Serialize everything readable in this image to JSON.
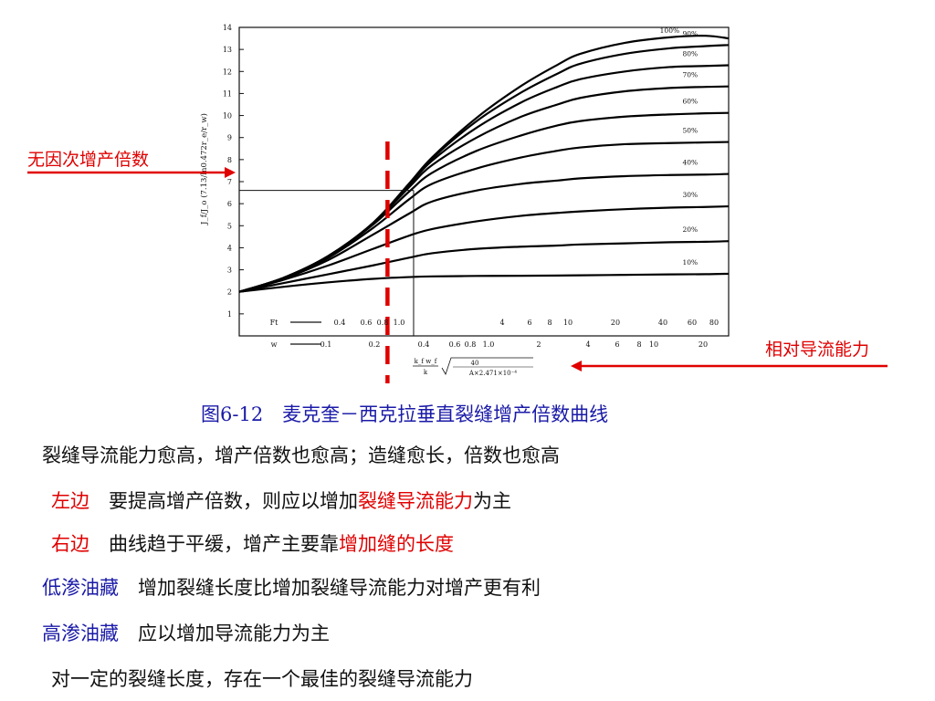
{
  "labels": {
    "left_arrow": "无因次增产倍数",
    "right_arrow": "相对导流能力"
  },
  "caption": "图6-12　麦克奎－西克拉垂直裂缝增产倍数曲线",
  "notes": [
    {
      "parts": [
        {
          "text": "裂缝导流能力愈高，增产倍数也愈高；造缝愈长，倍数也愈高",
          "style": "normal"
        }
      ]
    },
    {
      "parts": [
        {
          "text": "左边",
          "style": "red"
        },
        {
          "text": "　要提高增产倍数，则应以增加",
          "style": "normal"
        },
        {
          "text": "裂缝导流能力",
          "style": "red"
        },
        {
          "text": "为主",
          "style": "normal"
        }
      ]
    },
    {
      "parts": [
        {
          "text": "右边",
          "style": "red"
        },
        {
          "text": "　曲线趋于平缓，增产主要靠",
          "style": "normal"
        },
        {
          "text": "增加缝的长度",
          "style": "red"
        }
      ]
    },
    {
      "parts": [
        {
          "text": "低渗油藏",
          "style": "blue"
        },
        {
          "text": "　增加裂缝长度比增加裂缝导流能力对增产更有利",
          "style": "normal"
        }
      ]
    },
    {
      "parts": [
        {
          "text": "高渗油藏",
          "style": "blue"
        },
        {
          "text": "　应以增加导流能力为主",
          "style": "normal"
        }
      ]
    },
    {
      "parts": [
        {
          "text": "对一定的裂缝长度，存在一个最佳的裂缝导流能力",
          "style": "normal"
        }
      ]
    }
  ],
  "chart_data": {
    "type": "line",
    "title": "",
    "ylabel": "J_f/J_o (7.13/ln0.472r_e/r_w)",
    "ylim": [
      0,
      14
    ],
    "y_ticks": [
      "1",
      "2",
      "3",
      "4",
      "5",
      "6",
      "7",
      "8",
      "9",
      "10",
      "11",
      "12",
      "13",
      "14"
    ],
    "x_scale": "log",
    "xlim": [
      0.05,
      100
    ],
    "xlabel_formula": [
      "k_f w_f",
      "k",
      "40",
      "A×2.471×10⁻⁴"
    ],
    "ft_row": {
      "label": "Ft",
      "ticks": [
        "0.4",
        "0.6",
        "0.8",
        "1.0",
        "4",
        "6",
        "8",
        "10",
        "20",
        "40",
        "60",
        "80"
      ]
    },
    "w_row": {
      "label": "w",
      "ticks": [
        "0.1",
        "0.2",
        "0.4",
        "0.6",
        "0.8",
        "1.0",
        "2",
        "4",
        "6",
        "8",
        "10",
        "20"
      ]
    },
    "x": [
      0.05,
      0.1,
      0.2,
      0.4,
      0.7,
      1,
      2,
      4,
      7,
      10,
      20,
      40,
      70,
      100
    ],
    "series": [
      {
        "name": "10%",
        "values": [
          2.0,
          2.23,
          2.43,
          2.59,
          2.67,
          2.7,
          2.72,
          2.73,
          2.74,
          2.75,
          2.77,
          2.79,
          2.8,
          2.82
        ]
      },
      {
        "name": "20%",
        "values": [
          2.0,
          2.4,
          2.8,
          3.2,
          3.55,
          3.75,
          3.95,
          4.05,
          4.1,
          4.15,
          4.2,
          4.25,
          4.27,
          4.3
        ]
      },
      {
        "name": "30%",
        "values": [
          2.0,
          2.55,
          3.2,
          3.95,
          4.55,
          4.85,
          5.2,
          5.45,
          5.58,
          5.65,
          5.75,
          5.82,
          5.85,
          5.88
        ]
      },
      {
        "name": "40%",
        "values": [
          2.0,
          2.6,
          3.45,
          4.6,
          5.55,
          6.1,
          6.6,
          6.9,
          7.05,
          7.15,
          7.25,
          7.3,
          7.32,
          7.35
        ]
      },
      {
        "name": "50%",
        "values": [
          2.0,
          2.62,
          3.55,
          4.9,
          6.2,
          6.9,
          7.6,
          8.1,
          8.4,
          8.55,
          8.7,
          8.75,
          8.78,
          8.8
        ]
      },
      {
        "name": "60%",
        "values": [
          2.0,
          2.63,
          3.6,
          5.05,
          6.55,
          7.4,
          8.4,
          9.1,
          9.55,
          9.75,
          9.95,
          10.05,
          10.1,
          10.12
        ]
      },
      {
        "name": "70%",
        "values": [
          2.0,
          2.64,
          3.62,
          5.1,
          6.75,
          7.75,
          9.0,
          9.95,
          10.5,
          10.8,
          11.1,
          11.25,
          11.3,
          11.32
        ]
      },
      {
        "name": "80%",
        "values": [
          2.0,
          2.64,
          3.63,
          5.12,
          6.85,
          7.95,
          9.45,
          10.6,
          11.3,
          11.65,
          12.0,
          12.2,
          12.25,
          12.28
        ]
      },
      {
        "name": "90%",
        "values": [
          2.0,
          2.64,
          3.63,
          5.13,
          6.9,
          8.05,
          9.75,
          11.05,
          11.9,
          12.35,
          12.8,
          13.05,
          13.15,
          13.2
        ]
      },
      {
        "name": "100%",
        "values": [
          2.0,
          2.64,
          3.63,
          5.13,
          6.92,
          8.1,
          9.9,
          11.35,
          12.3,
          12.8,
          13.3,
          13.55,
          13.62,
          13.5
        ]
      }
    ],
    "reference_line_x": 0.5,
    "reference_marker": {
      "x": 0.75,
      "y": 6.6
    },
    "colors": {
      "curves": "#000000",
      "reference": "#e00000",
      "arrows": "#e00000"
    }
  }
}
